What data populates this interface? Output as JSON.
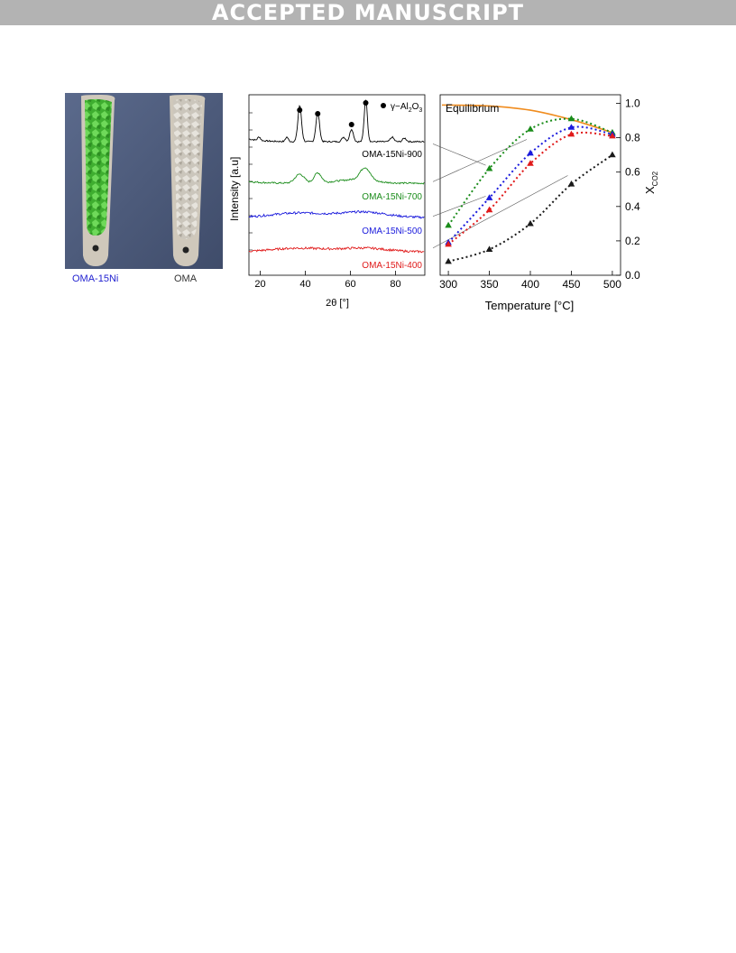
{
  "header": {
    "banner": "ACCEPTED MANUSCRIPT"
  },
  "photo": {
    "left_label": "OMA-15Ni",
    "right_label": "OMA",
    "colors": {
      "left_label": "#1f1fd0",
      "catalyst_green": "#4bbf3a",
      "boat": "#cfc8bb",
      "background": "#4f5e80"
    }
  },
  "chart_data": [
    {
      "type": "line",
      "xlabel": "2θ [°]",
      "ylabel": "Intensity [a.u]",
      "xlim": [
        15,
        93
      ],
      "xticks": [
        "20",
        "40",
        "60",
        "80"
      ],
      "legend": {
        "marker": "●",
        "text": "γ−Al2O3",
        "text_main": "γ−Al",
        "sub1": "2",
        "mid": "O",
        "sub2": "3"
      },
      "peak_positions_2theta": [
        37.5,
        45.5,
        60.5,
        66.8
      ],
      "series": [
        {
          "name": "OMA-15Ni-900",
          "color": "#000000",
          "offset": 3
        },
        {
          "name": "OMA-15Ni-700",
          "color": "#1a8c1a",
          "offset": 2
        },
        {
          "name": "OMA-15Ni-500",
          "color": "#1a1adc",
          "offset": 1
        },
        {
          "name": "OMA-15Ni-400",
          "color": "#e01a1a",
          "offset": 0
        }
      ]
    },
    {
      "type": "scatter",
      "xlabel": "Temperature [°C]",
      "ylabel": "X",
      "ylabel_sub": "CO2",
      "xlim": [
        290,
        510
      ],
      "ylim": [
        0,
        1.05
      ],
      "x": [
        300,
        350,
        400,
        450,
        500
      ],
      "xticks": [
        "300",
        "350",
        "400",
        "450",
        "500"
      ],
      "yticks": [
        "0.0",
        "0.2",
        "0.4",
        "0.6",
        "0.8",
        "1.0"
      ],
      "equilibrium": {
        "name": "Equilibrium",
        "color": "#f08c1e",
        "x": [
          300,
          350,
          400,
          450,
          500
        ],
        "y": [
          0.99,
          0.985,
          0.96,
          0.905,
          0.83
        ]
      },
      "series": [
        {
          "name": "OMA-15Ni-700",
          "color": "#1a8c1a",
          "values": [
            0.29,
            0.62,
            0.85,
            0.91,
            0.83
          ]
        },
        {
          "name": "OMA-15Ni-500",
          "color": "#1a1adc",
          "values": [
            0.19,
            0.45,
            0.71,
            0.86,
            0.82
          ]
        },
        {
          "name": "OMA-15Ni-400",
          "color": "#e01a1a",
          "values": [
            0.18,
            0.38,
            0.65,
            0.82,
            0.81
          ]
        },
        {
          "name": "OMA-15Ni-900",
          "color": "#1a1a1a",
          "values": [
            0.08,
            0.15,
            0.3,
            0.53,
            0.7
          ]
        }
      ]
    }
  ]
}
